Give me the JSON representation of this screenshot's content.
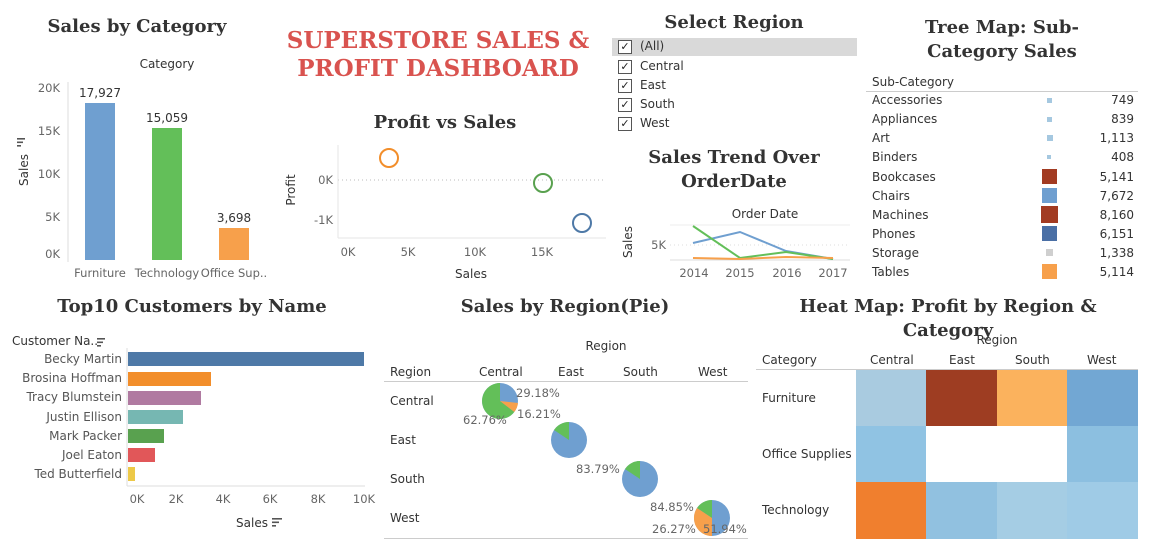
{
  "dashboard_title": "SUPERSTORE SALES & PROFIT DASHBOARD",
  "category_chart": {
    "title": "Sales by Category",
    "header": "Category",
    "ylabel": "Sales",
    "ticks": [
      "20K",
      "15K",
      "10K",
      "5K",
      "0K"
    ],
    "bars": [
      {
        "label": "Furniture",
        "value_label": "17,927",
        "color": "#6f9fd0"
      },
      {
        "label": "Technology",
        "value_label": "15,059",
        "color": "#63bf59"
      },
      {
        "label": "Office Sup..",
        "value_label": "3,698",
        "color": "#f7a04b"
      }
    ]
  },
  "scatter": {
    "title": "Profit vs Sales",
    "xlabel": "Sales",
    "ylabel": "Profit",
    "xticks": [
      "0K",
      "5K",
      "10K",
      "15K"
    ],
    "yticks": [
      "0K",
      "-1K"
    ]
  },
  "region_filter": {
    "title": "Select Region",
    "options": [
      "(All)",
      "Central",
      "East",
      "South",
      "West"
    ]
  },
  "trend": {
    "title": "Sales Trend Over OrderDate",
    "header": "Order Date",
    "ylabel": "Sales",
    "ytick": "5K",
    "xticks": [
      "2014",
      "2015",
      "2016",
      "2017"
    ]
  },
  "treemap": {
    "title": "Tree Map: Sub-Category Sales",
    "header": "Sub-Category",
    "rows": [
      {
        "name": "Accessories",
        "value": "749",
        "color": "#a5c8e0",
        "size": "small"
      },
      {
        "name": "Appliances",
        "value": "839",
        "color": "#a5c8e0",
        "size": "small"
      },
      {
        "name": "Art",
        "value": "1,113",
        "color": "#a5c8e0",
        "size": "small"
      },
      {
        "name": "Binders",
        "value": "408",
        "color": "#a5c8e0",
        "size": "small"
      },
      {
        "name": "Bookcases",
        "value": "5,141",
        "color": "#a23b22",
        "size": "big"
      },
      {
        "name": "Chairs",
        "value": "7,672",
        "color": "#6f9fd0",
        "size": "big"
      },
      {
        "name": "Machines",
        "value": "8,160",
        "color": "#a23b22",
        "size": "big"
      },
      {
        "name": "Phones",
        "value": "6,151",
        "color": "#4a6fa5",
        "size": "big"
      },
      {
        "name": "Storage",
        "value": "1,338",
        "color": "#cfcfcf",
        "size": "small"
      },
      {
        "name": "Tables",
        "value": "5,114",
        "color": "#f7a04b",
        "size": "big"
      }
    ]
  },
  "top_customers": {
    "title": "Top10 Customers by Name",
    "header": "Customer Na..",
    "xlabel": "Sales",
    "xticks": [
      "0K",
      "2K",
      "4K",
      "6K",
      "8K",
      "10K"
    ],
    "rows": [
      {
        "name": "Becky Martin",
        "value": 10000,
        "color": "#4e79a7"
      },
      {
        "name": "Brosina Hoffman",
        "value": 3500,
        "color": "#f28e2b"
      },
      {
        "name": "Tracy Blumstein",
        "value": 3000,
        "color": "#b07aa1"
      },
      {
        "name": "Justin Ellison",
        "value": 2300,
        "color": "#76b7b2"
      },
      {
        "name": "Mark Packer",
        "value": 1500,
        "color": "#59a14f"
      },
      {
        "name": "Joel Eaton",
        "value": 1100,
        "color": "#e15759"
      },
      {
        "name": "Ted Butterfield",
        "value": 300,
        "color": "#edc948"
      }
    ]
  },
  "pie_region": {
    "title": "Sales by Region(Pie)",
    "header": "Region",
    "row_header": "Region",
    "columns": [
      "Central",
      "East",
      "South",
      "West"
    ],
    "rows": [
      "Central",
      "East",
      "South",
      "West"
    ],
    "labels": [
      "29.18%",
      "16.21%",
      "62.76%",
      "83.79%",
      "84.85%",
      "26.27%",
      "51.94%"
    ]
  },
  "heatmap": {
    "title": "Heat Map: Profit by Region & Category",
    "header": "Region",
    "row_header": "Category",
    "columns": [
      "Central",
      "East",
      "South",
      "West"
    ],
    "rows": [
      "Furniture",
      "Office Supplies",
      "Technology"
    ],
    "colors": [
      [
        "#a9cbe0",
        "#9e3d22",
        "#fbb25d",
        "#72a7d3"
      ],
      [
        "#90c3e3",
        "#ffffff",
        "#ffffff",
        "#8cbfe0"
      ],
      [
        "#f07f2e",
        "#91c1e0",
        "#a5cde4",
        "#9fcbe6"
      ]
    ]
  }
}
